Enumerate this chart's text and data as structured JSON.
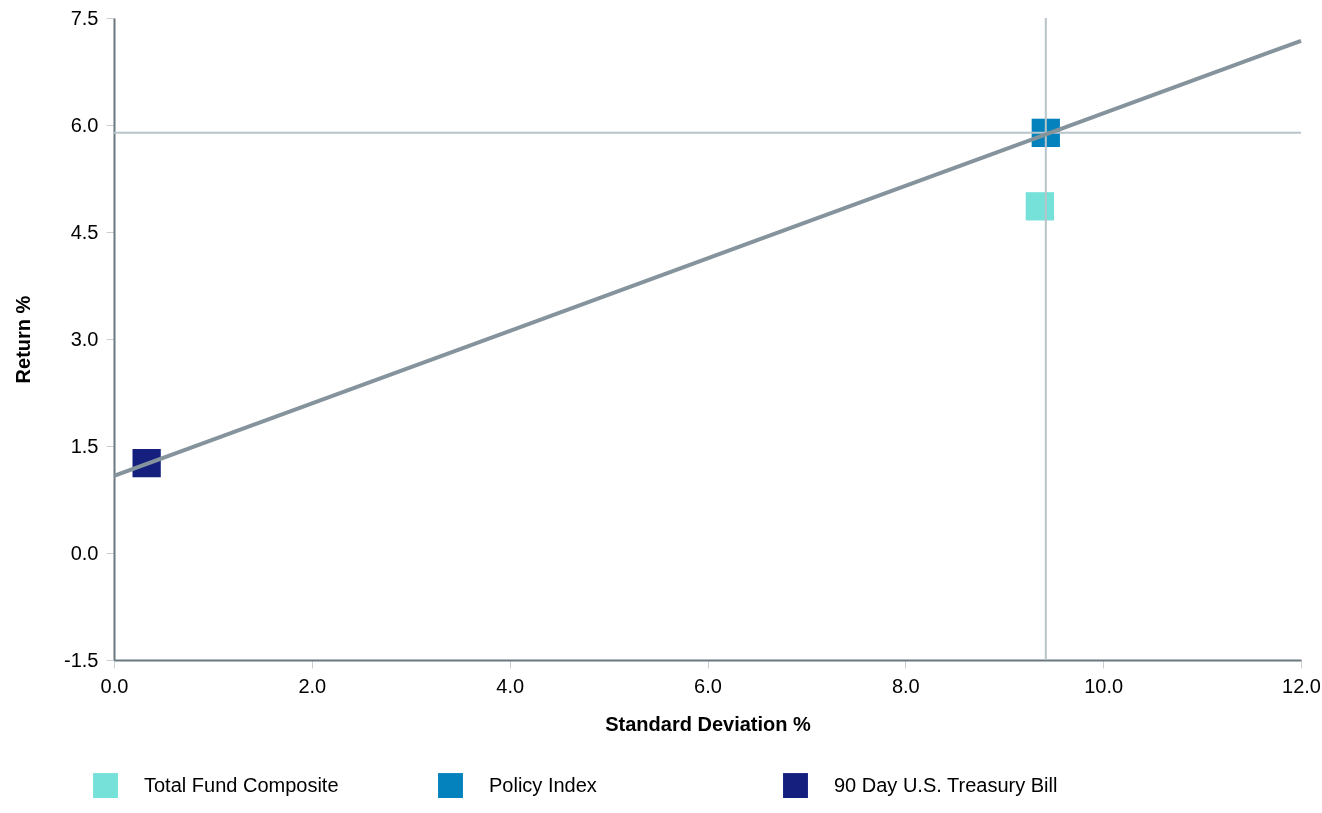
{
  "chart_data": {
    "type": "scatter",
    "xlabel": "Standard Deviation %",
    "ylabel": "Return %",
    "xlim": [
      0,
      12
    ],
    "ylim": [
      -1.5,
      7.5
    ],
    "xticks": [
      {
        "value": 0,
        "label": "0.0"
      },
      {
        "value": 2,
        "label": "2.0"
      },
      {
        "value": 4,
        "label": "4.0"
      },
      {
        "value": 6,
        "label": "6.0"
      },
      {
        "value": 8,
        "label": "8.0"
      },
      {
        "value": 10,
        "label": "10.0"
      },
      {
        "value": 12,
        "label": "12.0"
      }
    ],
    "yticks": [
      -1.5,
      {
        "value": 0,
        "label": "0.0"
      },
      1.5,
      {
        "value": 3,
        "label": "3.0"
      },
      4.5,
      {
        "value": 6,
        "label": "6.0"
      },
      7.5
    ],
    "marker": "square",
    "grid": false,
    "legend": "bottom",
    "series": [
      {
        "name": "Total Fund Composite",
        "color": "#76e1d8",
        "x": [
          9.36
        ],
        "values": [
          4.86
        ]
      },
      {
        "name": "Policy Index",
        "color": "#0382bd",
        "x": [
          9.42
        ],
        "values": [
          5.89
        ]
      },
      {
        "name": "90 Day U.S. Treasury Bill",
        "color": "#141f7e",
        "x": [
          0.33
        ],
        "values": [
          1.26
        ]
      },
      {
        "type": "line",
        "marker": "none",
        "color": "#85949c",
        "x": [
          0,
          12
        ],
        "values": [
          1.08,
          7.18
        ]
      }
    ],
    "ref_lines": [
      {
        "axis": "x",
        "value": 9.42,
        "color": "#b8c4c9"
      },
      {
        "axis": "y",
        "value": 5.89,
        "color": "#b8c4c9"
      }
    ]
  }
}
